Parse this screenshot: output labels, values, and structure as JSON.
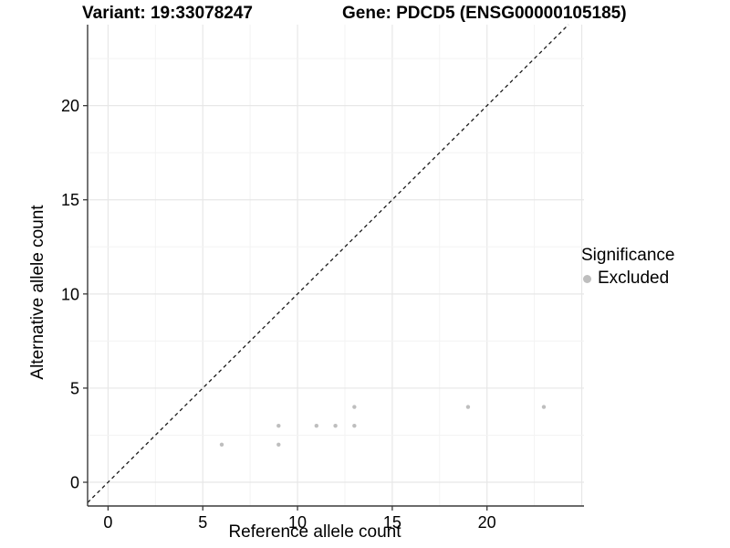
{
  "plot": {
    "title_left": "Variant: 19:33078247",
    "title_right": "Gene: PDCD5 (ENSG00000105185)"
  },
  "legend": {
    "title": "Significance",
    "items": [
      {
        "label": "Excluded",
        "color": "#bebebe"
      }
    ]
  },
  "chart_data": {
    "type": "scatter",
    "title_left": "Variant: 19:33078247",
    "title_right": "Gene: PDCD5 (ENSG00000105185)",
    "xlabel": "Reference allele count",
    "ylabel": "Alternative allele count",
    "xlim": [
      -1.08,
      25.12
    ],
    "ylim": [
      -1.26,
      24.3
    ],
    "xticks": [
      0,
      5,
      10,
      15,
      20
    ],
    "yticks": [
      0,
      5,
      10,
      15,
      20
    ],
    "minor_step": 2.5,
    "grid": {
      "major_color": "#e7e7e7",
      "minor_color": "#f3f3f3",
      "background": "#ffffff"
    },
    "axis_color": "#3a3a3a",
    "tick_label_color": "#000000",
    "identity_line": {
      "show": true,
      "style": "dashed",
      "color": "#1a1a1a"
    },
    "series": [
      {
        "name": "Excluded",
        "color": "#bebebe",
        "marker_radius": 2.2,
        "points": [
          [
            6,
            2
          ],
          [
            9,
            2
          ],
          [
            9,
            3
          ],
          [
            11,
            3
          ],
          [
            12,
            3
          ],
          [
            13,
            3
          ],
          [
            13,
            4
          ],
          [
            19,
            4
          ],
          [
            23,
            4
          ]
        ]
      }
    ]
  }
}
